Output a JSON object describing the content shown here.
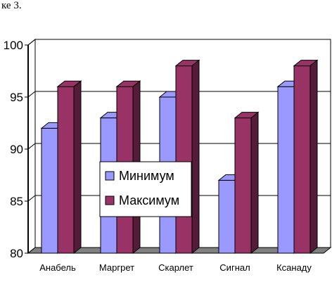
{
  "caption": "ке 3.",
  "chart_data": {
    "type": "bar",
    "categories": [
      "Анабель",
      "Маргрет",
      "Скарлет",
      "Сигнал",
      "Ксанаду"
    ],
    "series": [
      {
        "name": "Минимум",
        "values": [
          92,
          93,
          95,
          87,
          96
        ],
        "color": "#9999ff"
      },
      {
        "name": "Максимум",
        "values": [
          96,
          96,
          98,
          93,
          98
        ],
        "color": "#993366"
      }
    ],
    "yticks": [
      80,
      85,
      90,
      95,
      100
    ],
    "ylim": [
      80,
      100
    ],
    "title": "",
    "xlabel": "",
    "ylabel": "",
    "grid": true,
    "three_d": true,
    "legend": "center"
  }
}
